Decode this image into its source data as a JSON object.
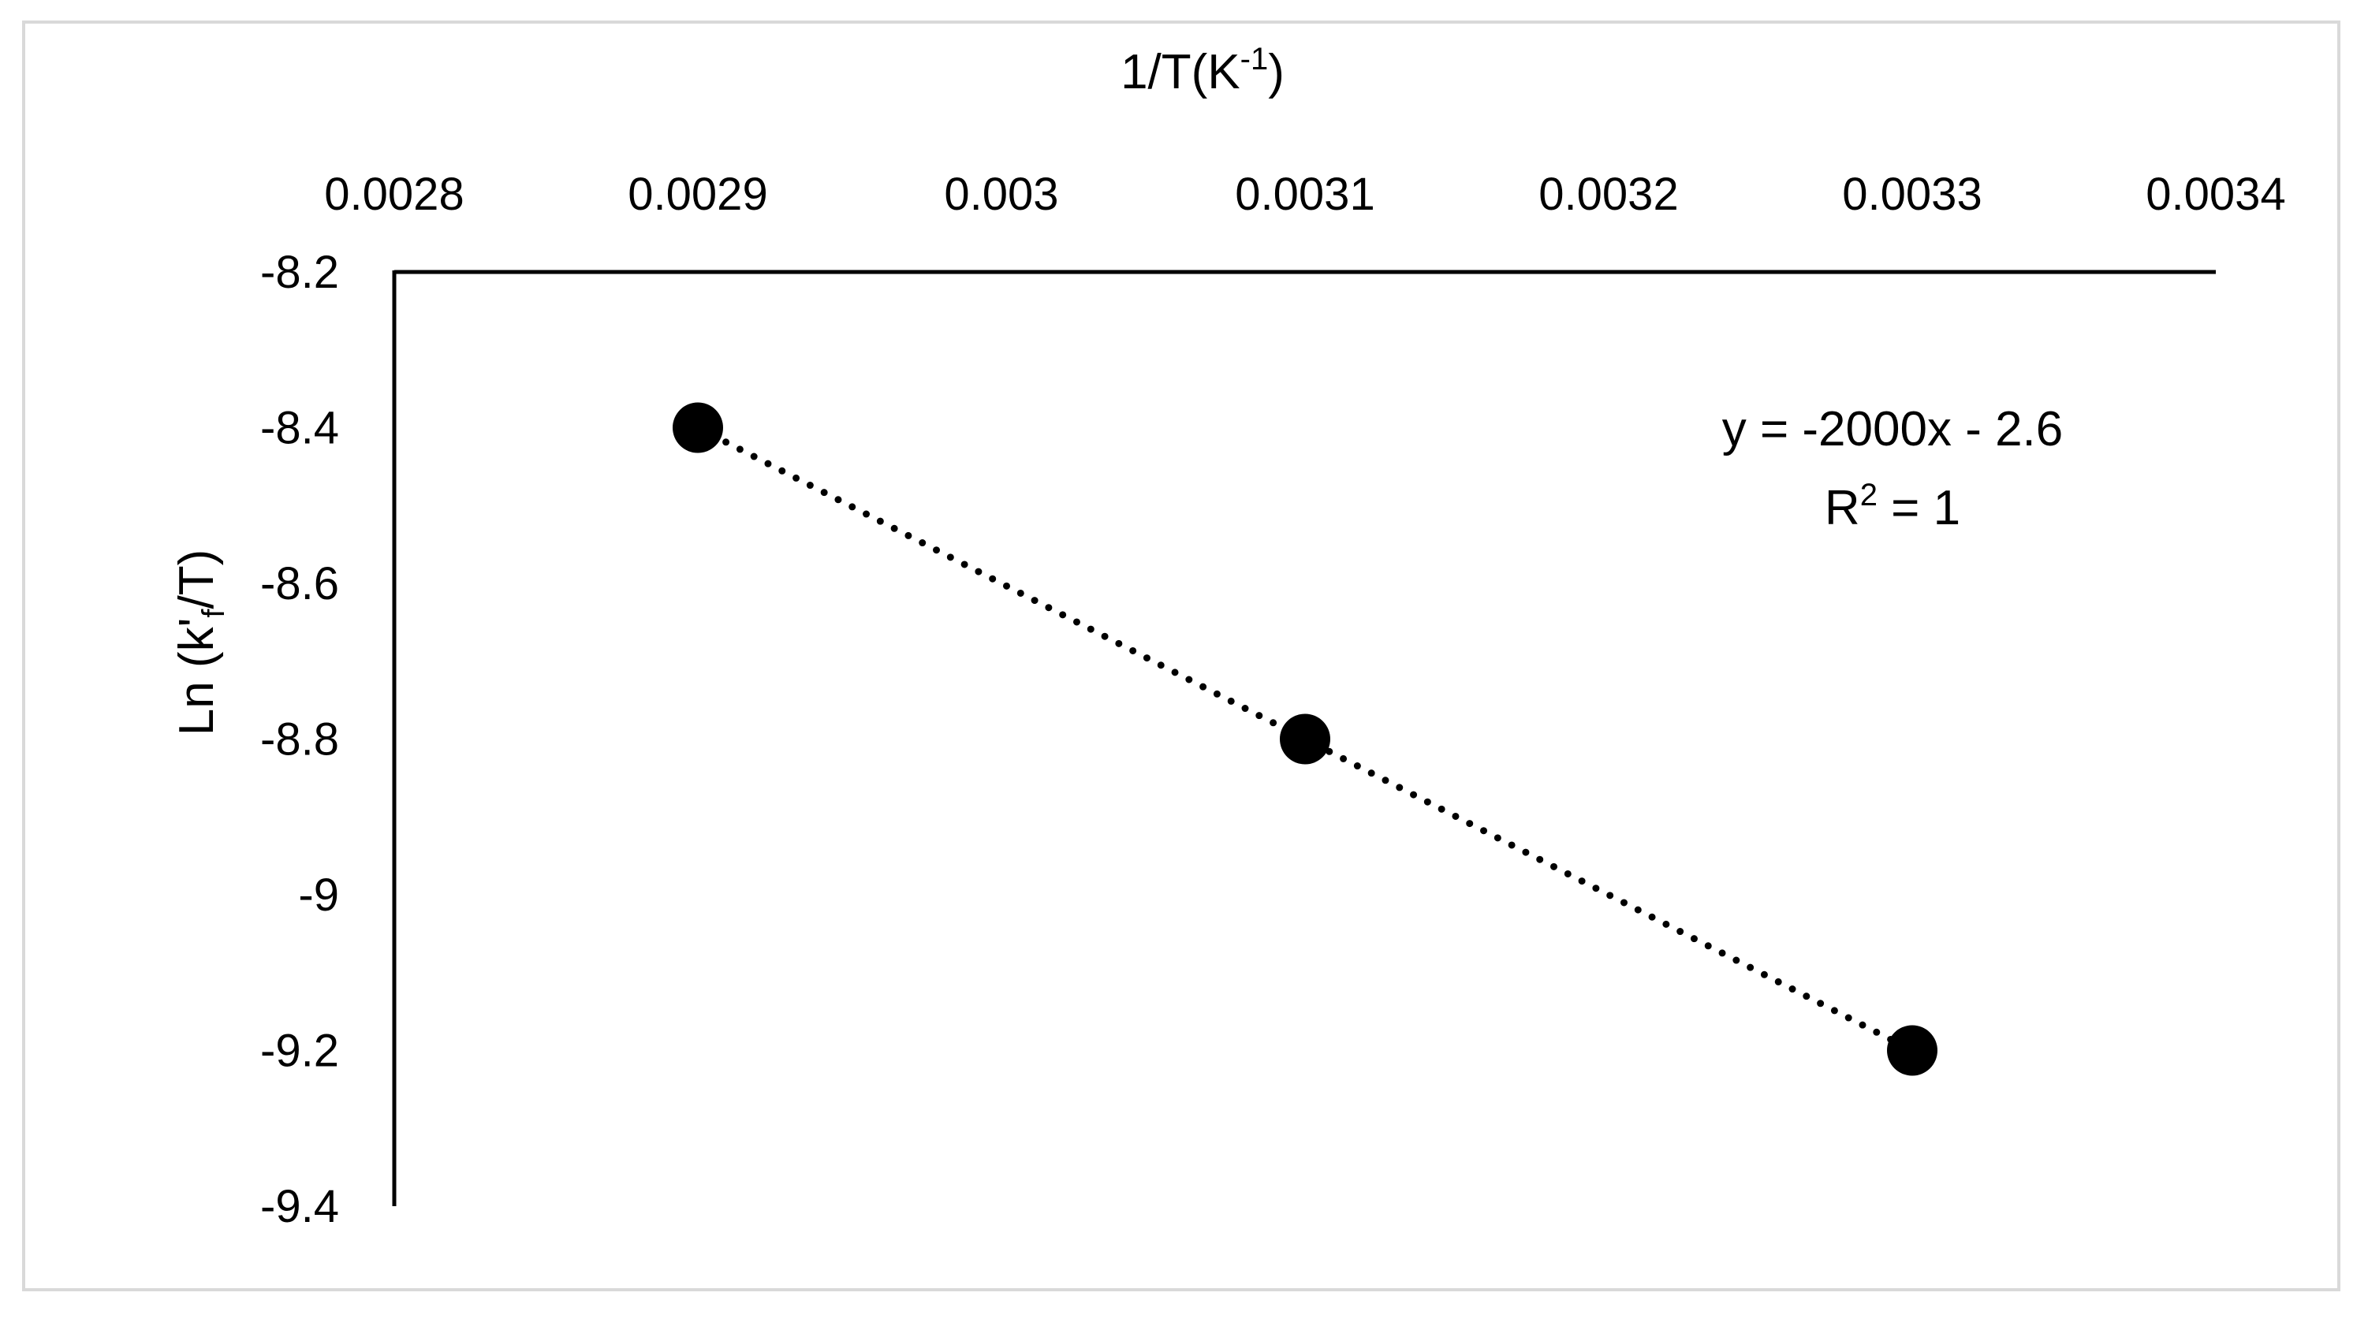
{
  "chart_data": {
    "type": "scatter",
    "xlabel": {
      "main": "1/T(K",
      "sup": "-1",
      "close": ")"
    },
    "ylabel": {
      "main": "Ln (k'",
      "sub": "f",
      "rest": "/T)"
    },
    "x_ticks": [
      "0.0028",
      "0.0029",
      "0.003",
      "0.0031",
      "0.0032",
      "0.0033",
      "0.0034"
    ],
    "y_ticks": [
      "-8.2",
      "-8.4",
      "-8.6",
      "-8.8",
      "-9",
      "-9.2",
      "-9.4"
    ],
    "xlim": [
      0.0028,
      0.0034
    ],
    "ylim": [
      -9.4,
      -8.2
    ],
    "x_axis_position": "top",
    "grid": false,
    "legend": "none",
    "series": [
      {
        "x": [
          0.0029,
          0.0031,
          0.0033
        ],
        "y": [
          -8.4,
          -8.8,
          -9.2
        ],
        "marker_color": "#000000"
      }
    ],
    "trendline": {
      "type": "linear",
      "style": "dotted",
      "color": "#000000",
      "slope": -2000,
      "intercept": -2.6,
      "equation": "y = -2000x - 2.6",
      "r2": {
        "main": "R",
        "sup": "2",
        "rest": " = 1"
      }
    }
  }
}
